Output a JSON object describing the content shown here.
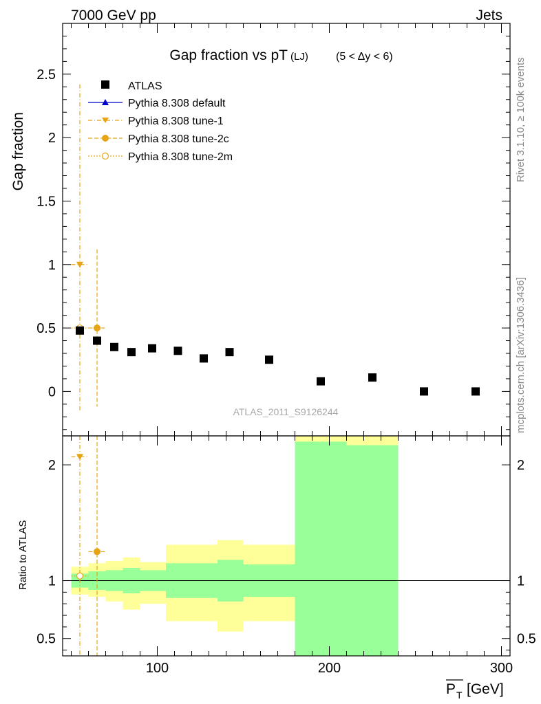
{
  "header": {
    "left": "7000 GeV pp",
    "right": "Jets"
  },
  "side_text": {
    "rivet": "Rivet 3.1.10, ≥ 100k events",
    "mcplots": "mcplots.cern.ch [arXiv:1306.3436]"
  },
  "chart_data": {
    "type": "scatter",
    "title": "Gap fraction vs pT",
    "title_sub": "(LJ)",
    "title_cut": "(5 < Δy < 6)",
    "watermark": "ATLAS_2011_S9126244",
    "xlabel": "P_T [GeV]",
    "xlabel_main": "P",
    "xlabel_sub": "T",
    "xlabel_unit": "[GeV]",
    "ylabel": "Gap fraction",
    "ratio_ylabel": "Ratio to ATLAS",
    "xlim": [
      45,
      305
    ],
    "ylim": [
      -0.35,
      2.9
    ],
    "ratio_ylim": [
      0.35,
      2.25
    ],
    "x_ticks": [
      100,
      200,
      300
    ],
    "y_ticks": [
      0,
      0.5,
      1,
      1.5,
      2,
      2.5
    ],
    "ratio_ticks": [
      0.5,
      1,
      2
    ],
    "legend_position": "upper-left",
    "legend": [
      "ATLAS",
      "Pythia 8.308 default",
      "Pythia 8.308 tune-1",
      "Pythia 8.308 tune-2c",
      "Pythia 8.308 tune-2m"
    ],
    "colors": {
      "data": "#000000",
      "default": "#0000cc",
      "tune": "#e6a514",
      "band_inner": "#99ff99",
      "band_outer": "#ffff99"
    },
    "data_points": [
      {
        "x": 55,
        "y": 0.48
      },
      {
        "x": 65,
        "y": 0.4
      },
      {
        "x": 75,
        "y": 0.35
      },
      {
        "x": 85,
        "y": 0.31
      },
      {
        "x": 97,
        "y": 0.34
      },
      {
        "x": 112,
        "y": 0.32
      },
      {
        "x": 127,
        "y": 0.26
      },
      {
        "x": 142,
        "y": 0.31
      },
      {
        "x": 165,
        "y": 0.25
      },
      {
        "x": 195,
        "y": 0.08
      },
      {
        "x": 225,
        "y": 0.11
      },
      {
        "x": 255,
        "y": 0.0
      },
      {
        "x": 285,
        "y": 0.0
      }
    ],
    "series": [
      {
        "name": "Pythia 8.308 tune-1",
        "marker": "triangle-down",
        "points": [
          {
            "x": 55,
            "y": 1.0,
            "ylo": -0.15,
            "yhi": 2.42,
            "xlo": 50,
            "xhi": 60
          }
        ]
      },
      {
        "name": "Pythia 8.308 tune-2c",
        "marker": "filled-circle",
        "points": [
          {
            "x": 65,
            "y": 0.5,
            "ylo": -0.12,
            "yhi": 1.12,
            "xlo": 60,
            "xhi": 70
          }
        ]
      },
      {
        "name": "Pythia 8.308 tune-2m",
        "marker": "open-circle",
        "points": [
          {
            "x": 55,
            "y": 0.5,
            "ylo": 0.5,
            "yhi": 0.5,
            "xlo": 50,
            "xhi": 60
          }
        ]
      }
    ],
    "ratio_band": [
      {
        "xlo": 50,
        "xhi": 60,
        "in_lo": 0.94,
        "in_hi": 1.06,
        "out_lo": 0.88,
        "out_hi": 1.12
      },
      {
        "xlo": 60,
        "xhi": 70,
        "in_lo": 0.92,
        "in_hi": 1.08,
        "out_lo": 0.86,
        "out_hi": 1.15
      },
      {
        "xlo": 70,
        "xhi": 80,
        "in_lo": 0.91,
        "in_hi": 1.09,
        "out_lo": 0.82,
        "out_hi": 1.17
      },
      {
        "xlo": 80,
        "xhi": 90,
        "in_lo": 0.89,
        "in_hi": 1.11,
        "out_lo": 0.75,
        "out_hi": 1.2
      },
      {
        "xlo": 90,
        "xhi": 105,
        "in_lo": 0.91,
        "in_hi": 1.09,
        "out_lo": 0.8,
        "out_hi": 1.16
      },
      {
        "xlo": 105,
        "xhi": 120,
        "in_lo": 0.85,
        "in_hi": 1.15,
        "out_lo": 0.65,
        "out_hi": 1.31
      },
      {
        "xlo": 120,
        "xhi": 135,
        "in_lo": 0.85,
        "in_hi": 1.15,
        "out_lo": 0.65,
        "out_hi": 1.31
      },
      {
        "xlo": 135,
        "xhi": 150,
        "in_lo": 0.82,
        "in_hi": 1.18,
        "out_lo": 0.56,
        "out_hi": 1.35
      },
      {
        "xlo": 150,
        "xhi": 180,
        "in_lo": 0.86,
        "in_hi": 1.14,
        "out_lo": 0.65,
        "out_hi": 1.31
      },
      {
        "xlo": 180,
        "xhi": 210,
        "in_lo": 0.35,
        "in_hi": 2.2,
        "out_lo": 0.35,
        "out_hi": 2.25
      },
      {
        "xlo": 210,
        "xhi": 240,
        "in_lo": 0.35,
        "in_hi": 2.17,
        "out_lo": 0.35,
        "out_hi": 2.25
      }
    ],
    "ratio_series": [
      {
        "name": "Pythia 8.308 tune-1",
        "marker": "triangle-down",
        "x": 55,
        "y": 2.07,
        "xlo": 50,
        "xhi": 60,
        "ylo": 0.35,
        "yhi": 2.25
      },
      {
        "name": "Pythia 8.308 tune-2c",
        "marker": "filled-circle",
        "x": 65,
        "y": 1.25,
        "xlo": 60,
        "xhi": 70,
        "ylo": 0.35,
        "yhi": 2.25
      },
      {
        "name": "Pythia 8.308 tune-2m",
        "marker": "open-circle",
        "x": 55,
        "y": 1.04,
        "xlo": 50,
        "xhi": 60,
        "ylo": 1.04,
        "yhi": 1.04
      }
    ]
  }
}
